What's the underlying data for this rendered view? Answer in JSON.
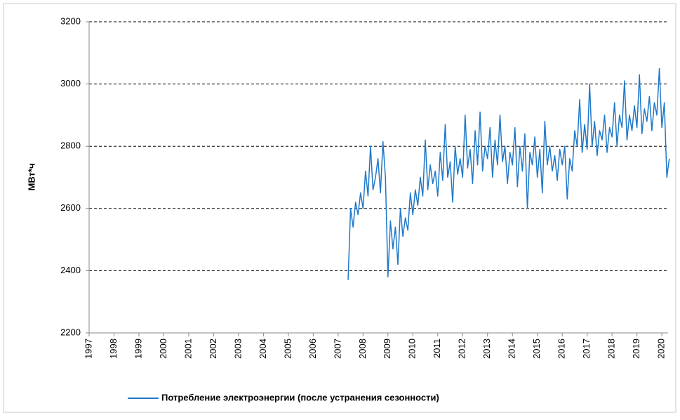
{
  "chart_data": {
    "type": "line",
    "y_label": "МВт*ч",
    "x": [
      2007.4,
      2007.5,
      2007.6,
      2007.7,
      2007.8,
      2007.9,
      2008.0,
      2008.1,
      2008.2,
      2008.3,
      2008.4,
      2008.5,
      2008.6,
      2008.7,
      2008.8,
      2008.9,
      2009.0,
      2009.1,
      2009.2,
      2009.3,
      2009.4,
      2009.5,
      2009.6,
      2009.7,
      2009.8,
      2009.9,
      2010.0,
      2010.1,
      2010.2,
      2010.3,
      2010.4,
      2010.5,
      2010.6,
      2010.7,
      2010.8,
      2010.9,
      2011.0,
      2011.1,
      2011.2,
      2011.3,
      2011.4,
      2011.5,
      2011.6,
      2011.7,
      2011.8,
      2011.9,
      2012.0,
      2012.1,
      2012.2,
      2012.3,
      2012.4,
      2012.5,
      2012.6,
      2012.7,
      2012.8,
      2012.9,
      2013.0,
      2013.1,
      2013.2,
      2013.3,
      2013.4,
      2013.5,
      2013.6,
      2013.7,
      2013.8,
      2013.9,
      2014.0,
      2014.1,
      2014.2,
      2014.3,
      2014.4,
      2014.5,
      2014.6,
      2014.7,
      2014.8,
      2014.9,
      2015.0,
      2015.1,
      2015.2,
      2015.3,
      2015.4,
      2015.5,
      2015.6,
      2015.7,
      2015.8,
      2015.9,
      2016.0,
      2016.1,
      2016.2,
      2016.3,
      2016.4,
      2016.5,
      2016.6,
      2016.7,
      2016.8,
      2016.9,
      2017.0,
      2017.1,
      2017.2,
      2017.3,
      2017.4,
      2017.5,
      2017.6,
      2017.7,
      2017.8,
      2017.9,
      2018.0,
      2018.1,
      2018.2,
      2018.3,
      2018.4,
      2018.5,
      2018.6,
      2018.7,
      2018.8,
      2018.9,
      2019.0,
      2019.1,
      2019.2,
      2019.3,
      2019.4,
      2019.5,
      2019.6,
      2019.7,
      2019.8,
      2019.9,
      2020.0,
      2020.1,
      2020.2,
      2020.3
    ],
    "series": [
      {
        "name": "Потребление электроэнергии (после устранения сезонности)",
        "color": "#1f78c8",
        "values": [
          2370,
          2600,
          2540,
          2620,
          2580,
          2650,
          2600,
          2720,
          2640,
          2800,
          2660,
          2700,
          2760,
          2650,
          2815,
          2700,
          2380,
          2560,
          2470,
          2540,
          2420,
          2600,
          2510,
          2570,
          2530,
          2650,
          2580,
          2660,
          2610,
          2700,
          2640,
          2820,
          2660,
          2740,
          2680,
          2720,
          2640,
          2780,
          2690,
          2870,
          2700,
          2750,
          2620,
          2800,
          2710,
          2760,
          2700,
          2900,
          2730,
          2790,
          2680,
          2850,
          2740,
          2910,
          2720,
          2800,
          2760,
          2860,
          2700,
          2820,
          2740,
          2900,
          2750,
          2800,
          2680,
          2780,
          2740,
          2860,
          2670,
          2800,
          2720,
          2840,
          2600,
          2780,
          2740,
          2830,
          2700,
          2790,
          2650,
          2880,
          2740,
          2800,
          2720,
          2770,
          2690,
          2790,
          2740,
          2800,
          2630,
          2760,
          2720,
          2850,
          2800,
          2950,
          2780,
          2870,
          2790,
          3000,
          2800,
          2880,
          2770,
          2850,
          2820,
          2900,
          2780,
          2860,
          2830,
          2940,
          2800,
          2900,
          2860,
          3010,
          2820,
          2900,
          2850,
          2930,
          2860,
          3030,
          2840,
          2920,
          2880,
          2960,
          2850,
          2940,
          2900,
          3050,
          2860,
          2940,
          2700,
          2760
        ]
      }
    ],
    "xlim": [
      1997,
      2020.25
    ],
    "xticks": [
      1997,
      1998,
      1999,
      2000,
      2001,
      2002,
      2003,
      2004,
      2005,
      2006,
      2007,
      2008,
      2009,
      2010,
      2011,
      2012,
      2013,
      2014,
      2015,
      2016,
      2017,
      2018,
      2019,
      2020
    ],
    "ylim": [
      2200,
      3200
    ],
    "yticks": [
      2200,
      2400,
      2600,
      2800,
      3000,
      3200
    ],
    "grid": true,
    "legend": "bottom"
  }
}
